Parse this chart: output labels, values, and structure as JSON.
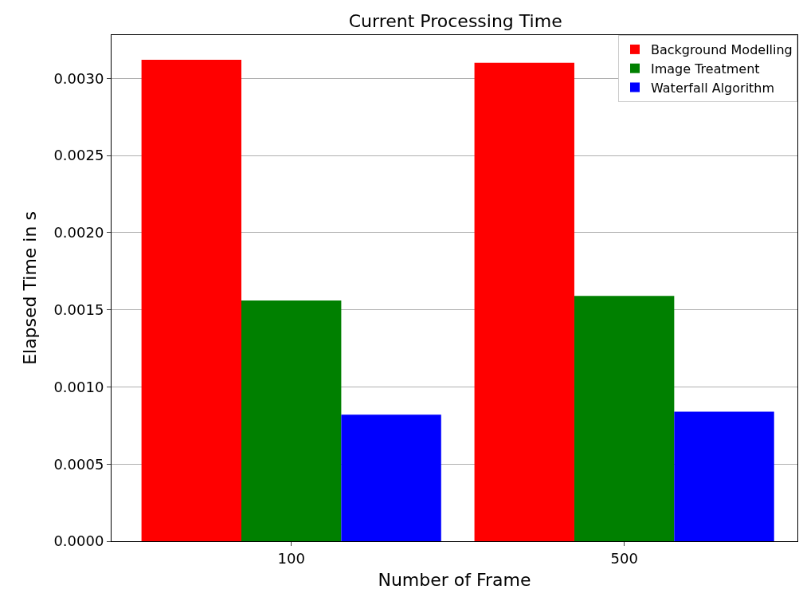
{
  "chart_data": {
    "type": "bar",
    "title": "Current Processing Time",
    "xlabel": "Number of Frame",
    "ylabel": "Elapsed Time in s",
    "categories": [
      "100",
      "500"
    ],
    "series": [
      {
        "name": "Background Modelling",
        "color": "#ff0000",
        "values": [
          0.00312,
          0.0031
        ]
      },
      {
        "name": "Image Treatment",
        "color": "#008000",
        "values": [
          0.00156,
          0.00159
        ]
      },
      {
        "name": "Waterfall Algorithm",
        "color": "#0000ff",
        "values": [
          0.00082,
          0.00084
        ]
      }
    ],
    "ylim": [
      0,
      0.00328
    ],
    "yticks": [
      {
        "value": 0,
        "label": "0.0000"
      },
      {
        "value": 0.0005,
        "label": "0.0005"
      },
      {
        "value": 0.001,
        "label": "0.0010"
      },
      {
        "value": 0.0015,
        "label": "0.0015"
      },
      {
        "value": 0.002,
        "label": "0.0020"
      },
      {
        "value": 0.0025,
        "label": "0.0025"
      },
      {
        "value": 0.003,
        "label": "0.0030"
      }
    ],
    "grid": "y",
    "legend": "top right"
  }
}
